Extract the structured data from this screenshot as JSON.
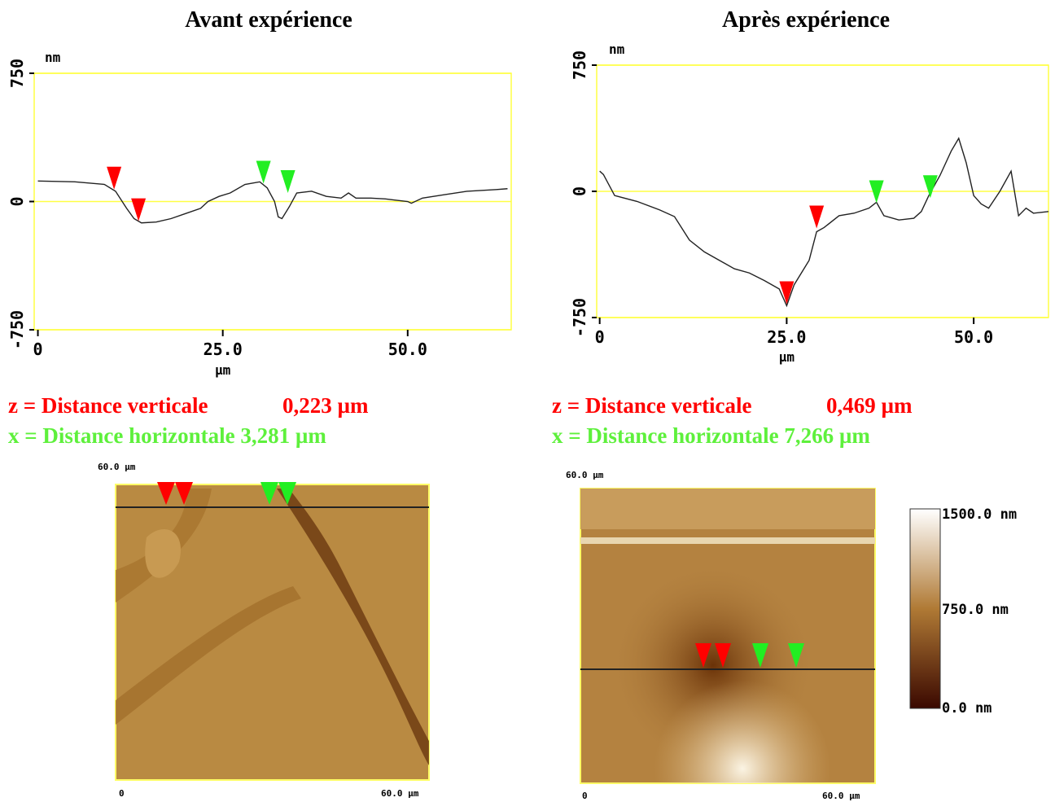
{
  "chart_data": [
    {
      "type": "line",
      "title": "Avant expérience",
      "x_label": "µm",
      "y_label": "nm",
      "x": [
        0,
        5,
        9,
        10.5,
        12,
        13,
        14,
        16,
        18,
        20,
        22,
        23,
        24.5,
        26,
        28,
        30,
        31,
        32,
        32.5,
        33,
        34,
        35,
        37,
        39,
        41,
        42,
        43,
        45,
        47,
        48,
        50,
        50.5,
        52,
        55,
        58,
        62,
        63.5
      ],
      "series": [
        {
          "color": "#222222",
          "values": [
            120,
            115,
            100,
            60,
            -40,
            -100,
            -125,
            -120,
            -100,
            -70,
            -40,
            0,
            30,
            50,
            100,
            115,
            80,
            0,
            -90,
            -100,
            -30,
            50,
            60,
            30,
            20,
            50,
            20,
            20,
            15,
            10,
            0,
            -10,
            20,
            40,
            60,
            70,
            75
          ]
        }
      ],
      "markers": [
        {
          "color": "#ff0000",
          "x": 10.3,
          "y": 70
        },
        {
          "color": "#ff0000",
          "x": 13.6,
          "y": -115
        },
        {
          "color": "#22ee22",
          "x": 30.5,
          "y": 105
        },
        {
          "color": "#22ee22",
          "x": 33.8,
          "y": 50
        }
      ],
      "xlim": [
        -0.5,
        64
      ],
      "ylim": [
        -750,
        750
      ],
      "xticks": [
        0,
        {
          "value": 25,
          "label": "25.0"
        },
        {
          "value": 50,
          "label": "50.0"
        }
      ],
      "yticks": [
        -750,
        0,
        750
      ],
      "grid": true
    },
    {
      "type": "line",
      "title": "Après expérience",
      "x_label": "µm",
      "y_label": "nm",
      "x": [
        0,
        0.5,
        2,
        5,
        8,
        10,
        12,
        14,
        16,
        18,
        20,
        22,
        24,
        25,
        26,
        28,
        29,
        30,
        32,
        34,
        36,
        37,
        38,
        40,
        42,
        43,
        44,
        45.5,
        47,
        48,
        49,
        50,
        51,
        52,
        53.5,
        55,
        56,
        57,
        58,
        60
      ],
      "series": [
        {
          "color": "#222222",
          "values": [
            120,
            100,
            -25,
            -60,
            -110,
            -150,
            -290,
            -360,
            -410,
            -460,
            -485,
            -530,
            -580,
            -680,
            -555,
            -410,
            -240,
            -215,
            -145,
            -130,
            -100,
            -65,
            -145,
            -170,
            -160,
            -120,
            -25,
            95,
            240,
            315,
            170,
            -25,
            -75,
            -100,
            0,
            120,
            -145,
            -100,
            -130,
            -120
          ]
        }
      ],
      "markers": [
        {
          "color": "#ff0000",
          "x": 29,
          "y": -220
        },
        {
          "color": "#ff0000",
          "x": 25,
          "y": -670
        },
        {
          "color": "#22ee22",
          "x": 37,
          "y": -70
        },
        {
          "color": "#22ee22",
          "x": 44.2,
          "y": -40
        }
      ],
      "xlim": [
        -0.4,
        60
      ],
      "ylim": [
        -750,
        750
      ],
      "xticks": [
        0,
        {
          "value": 25,
          "label": "25.0"
        },
        {
          "value": 50,
          "label": "50.0"
        }
      ],
      "yticks": [
        -750,
        0,
        750
      ],
      "grid": true
    }
  ],
  "measurements": [
    [
      {
        "label": "z = Distance verticale",
        "value": "0,223 µm"
      },
      {
        "label": "x = Distance horizontale 3,281 µm"
      }
    ],
    [
      {
        "label": "z = Distance verticale",
        "value": "0,469 µm"
      },
      {
        "label": "x = Distance horizontale 7,266 µm"
      }
    ]
  ],
  "images": [
    {
      "top_label": "60.0 µm",
      "origin": "0",
      "right_label": "60.0 µm"
    },
    {
      "top_label": "60.0 µm",
      "origin": "0",
      "right_label": "60.0 µm"
    }
  ],
  "colorbar": {
    "labels": [
      "1500.0 nm",
      "750.0 nm",
      "0.0 nm"
    ]
  }
}
